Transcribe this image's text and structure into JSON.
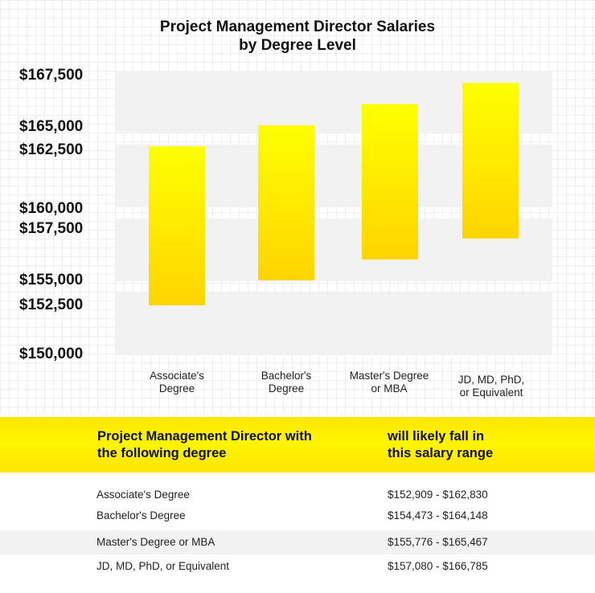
{
  "chart_data": {
    "type": "bar",
    "subtype": "floating-range",
    "title": "Project Management Director Salaries by Degree Level",
    "title_lines": [
      "Project Management Director Salaries",
      "by Degree Level"
    ],
    "categories": [
      "Associate's Degree",
      "Bachelor's Degree",
      "Master's Degree or MBA",
      "JD, MD, PhD, or Equivalent"
    ],
    "category_lines": [
      [
        "Associate's",
        "Degree"
      ],
      [
        "Bachelor's",
        "Degree"
      ],
      [
        "Master's Degree",
        "or MBA"
      ],
      [
        "JD, MD, PhD,",
        "or Equivalent"
      ]
    ],
    "ranges": [
      [
        152909,
        162830
      ],
      [
        154473,
        164148
      ],
      [
        155776,
        165467
      ],
      [
        157080,
        166785
      ]
    ],
    "y_ticks": [
      "$167,500",
      "$165,000",
      "$162,500",
      "$160,000",
      "$157,500",
      "$155,000",
      "$152,500",
      "$150,000"
    ],
    "ylim": [
      150000,
      167500
    ],
    "bar_color_top": "#ffff00",
    "bar_color_bottom": "#ffd400",
    "band_color": "#f2f2f2"
  },
  "table": {
    "header": {
      "col1": [
        "Project Management Director with",
        "the following degree"
      ],
      "col2": [
        "will likely fall in",
        "this salary range"
      ]
    },
    "rows": [
      {
        "degree": "Associate's Degree",
        "range": "$152,909 - $162,830"
      },
      {
        "degree": "Bachelor's Degree",
        "range": "$154,473 - $164,148"
      },
      {
        "degree": "Master's Degree or MBA",
        "range": "$155,776 - $165,467"
      },
      {
        "degree": "JD, MD, PhD, or Equivalent",
        "range": "$157,080 - $166,785"
      }
    ],
    "header_color": "#fff200"
  }
}
